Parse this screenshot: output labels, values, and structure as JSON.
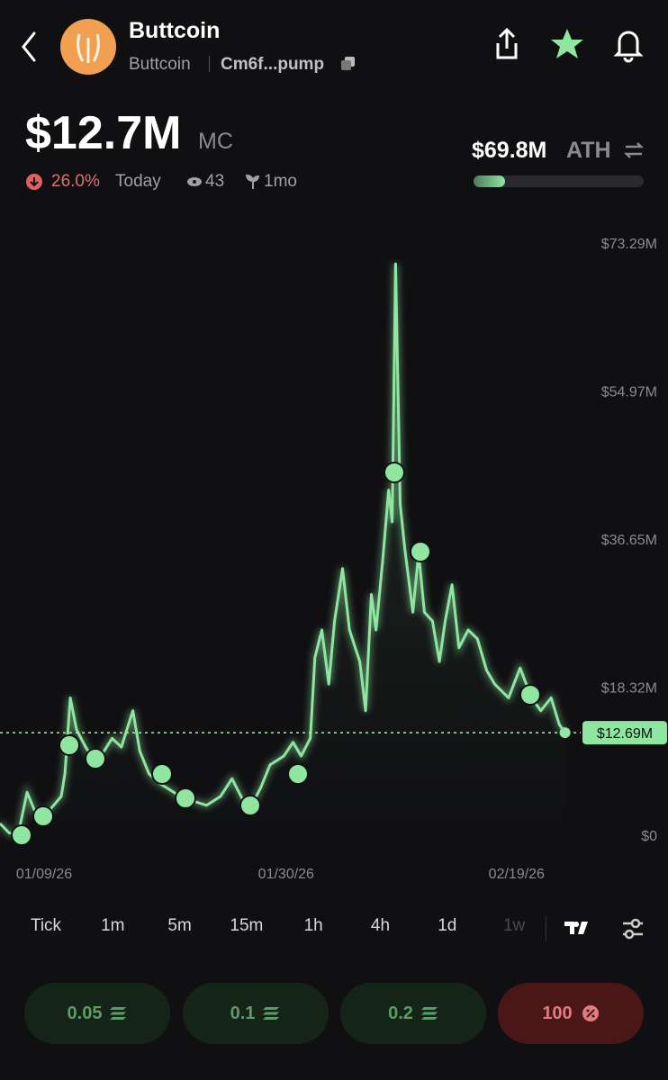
{
  "header": {
    "name": "Buttcoin",
    "ticker": "Buttcoin",
    "address": "Cm6f...pump"
  },
  "stats": {
    "market_cap": "$12.7M",
    "mc_label": "MC",
    "change": "26.0%",
    "change_label": "Today",
    "watchers": "43",
    "age": "1mo",
    "ath": "$69.8M",
    "ath_label": "ATH"
  },
  "chart_data": {
    "type": "line",
    "color": "#8ee6a0",
    "x": [
      -3.83,
      -3.05,
      -2.27,
      -1.48,
      -0.7,
      0.47,
      1.48,
      1.8,
      2.27,
      2.8,
      3.6,
      4.4,
      5.2,
      5.9,
      6.7,
      7.7,
      8.3,
      9.1,
      9.9,
      10.6,
      11.8,
      13.0,
      14.1,
      15.3,
      16.3,
      17.3,
      18.0,
      18.8,
      19.6,
      20.8,
      21.6,
      22.3,
      23.1,
      23.5,
      24.1,
      24.7,
      25.2,
      25.9,
      26.5,
      27.0,
      27.4,
      27.9,
      28.4,
      28.8,
      29.4,
      29.9,
      30.2,
      30.5,
      30.9,
      31.3,
      32.0,
      32.5,
      33.0,
      33.7,
      34.3,
      34.8,
      35.4,
      36.0,
      36.8,
      37.6,
      38.4,
      39.1,
      40.3,
      41.3,
      42.3,
      43.1,
      44.0,
      44.7,
      45.2
    ],
    "values": [
      1.45,
      0.3,
      0,
      5.3,
      2.6,
      3.1,
      4.8,
      7.6,
      17.0,
      13.1,
      10.9,
      9.2,
      10.4,
      12.0,
      10.9,
      15.4,
      10.4,
      7.6,
      6.5,
      5.9,
      4.8,
      4.2,
      3.7,
      4.8,
      7.0,
      4.2,
      3.7,
      5.9,
      8.7,
      9.8,
      11.5,
      9.8,
      12.0,
      22.0,
      25.4,
      18.7,
      26.5,
      33.0,
      25.4,
      23.2,
      21.5,
      15.4,
      29.8,
      25.4,
      34.3,
      42.7,
      38.8,
      70.7,
      41.0,
      35.4,
      27.6,
      34.9,
      27.6,
      26.5,
      21.5,
      26.5,
      31.0,
      23.2,
      25.4,
      24.3,
      20.4,
      18.7,
      17.0,
      20.7,
      17.0,
      15.4,
      17.0,
      13.7,
      12.69
    ],
    "xlim": [
      -3.83,
      46.17
    ],
    "xticks": [
      {
        "value": 0,
        "label": "01/09/26"
      },
      {
        "value": 21,
        "label": "01/30/26"
      },
      {
        "value": 41,
        "label": "02/19/26"
      }
    ],
    "ylim": [
      0,
      73.29
    ],
    "yticks": [
      {
        "value": 0,
        "label": "$0"
      },
      {
        "value": 18.32,
        "label": "$18.32M"
      },
      {
        "value": 36.65,
        "label": "$36.65M"
      },
      {
        "value": 54.97,
        "label": "$54.97M"
      },
      {
        "value": 73.29,
        "label": "$73.29M"
      }
    ],
    "current": {
      "value": 12.69,
      "label": "$12.69M"
    }
  },
  "timeframes": [
    "Tick",
    "1m",
    "5m",
    "15m",
    "1h",
    "4h",
    "1d",
    "1w"
  ],
  "buy_buttons": [
    "0.05",
    "0.1",
    "0.2"
  ],
  "sell_button": "100"
}
